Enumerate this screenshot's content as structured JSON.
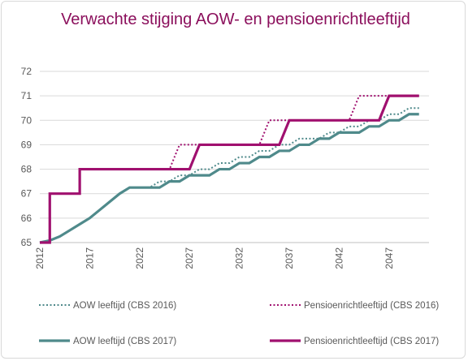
{
  "chart_data": {
    "type": "line",
    "title": "Verwachte stijging  AOW- en pensioenrichtleeftijd",
    "xlabel": "",
    "ylabel": "",
    "xlim": [
      2012,
      2051
    ],
    "ylim": [
      65,
      72
    ],
    "x_ticks": [
      "2012",
      "2017",
      "2022",
      "2027",
      "2032",
      "2037",
      "2042",
      "2047"
    ],
    "y_ticks": [
      "65",
      "66",
      "67",
      "68",
      "69",
      "70",
      "71",
      "72"
    ],
    "grid": true,
    "legend_position": "bottom",
    "series": [
      {
        "name": "AOW leeftijd (CBS 2016)",
        "style": "dotted",
        "color": "#4f8a8b",
        "points": [
          [
            2012,
            65
          ],
          [
            2013,
            65.083
          ],
          [
            2014,
            65.25
          ],
          [
            2015,
            65.5
          ],
          [
            2016,
            65.75
          ],
          [
            2017,
            66
          ],
          [
            2018,
            66.333
          ],
          [
            2019,
            66.667
          ],
          [
            2020,
            67
          ],
          [
            2021,
            67.25
          ],
          [
            2022,
            67.25
          ],
          [
            2023,
            67.25
          ],
          [
            2024,
            67.5
          ],
          [
            2025,
            67.5
          ],
          [
            2026,
            67.75
          ],
          [
            2027,
            67.75
          ],
          [
            2028,
            68
          ],
          [
            2029,
            68
          ],
          [
            2030,
            68.25
          ],
          [
            2031,
            68.25
          ],
          [
            2032,
            68.5
          ],
          [
            2033,
            68.5
          ],
          [
            2034,
            68.75
          ],
          [
            2035,
            68.75
          ],
          [
            2036,
            69
          ],
          [
            2037,
            69
          ],
          [
            2038,
            69.25
          ],
          [
            2039,
            69.25
          ],
          [
            2040,
            69.25
          ],
          [
            2041,
            69.5
          ],
          [
            2042,
            69.5
          ],
          [
            2043,
            69.75
          ],
          [
            2044,
            69.75
          ],
          [
            2045,
            70
          ],
          [
            2046,
            70
          ],
          [
            2047,
            70.25
          ],
          [
            2048,
            70.25
          ],
          [
            2049,
            70.5
          ],
          [
            2050,
            70.5
          ]
        ]
      },
      {
        "name": "Pensioenrichtleeftijd (CBS 2016)",
        "style": "dotted",
        "color": "#a0106f",
        "points": [
          [
            2012,
            65
          ],
          [
            2013,
            65
          ],
          [
            2013,
            67
          ],
          [
            2014,
            67
          ],
          [
            2015,
            67
          ],
          [
            2016,
            67
          ],
          [
            2016,
            68
          ],
          [
            2017,
            68
          ],
          [
            2018,
            68
          ],
          [
            2019,
            68
          ],
          [
            2020,
            68
          ],
          [
            2021,
            68
          ],
          [
            2022,
            68
          ],
          [
            2023,
            68
          ],
          [
            2024,
            68
          ],
          [
            2025,
            68
          ],
          [
            2026,
            69
          ],
          [
            2027,
            69
          ],
          [
            2028,
            69
          ],
          [
            2029,
            69
          ],
          [
            2030,
            69
          ],
          [
            2031,
            69
          ],
          [
            2032,
            69
          ],
          [
            2033,
            69
          ],
          [
            2034,
            69
          ],
          [
            2035,
            70
          ],
          [
            2036,
            70
          ],
          [
            2037,
            70
          ],
          [
            2038,
            70
          ],
          [
            2039,
            70
          ],
          [
            2040,
            70
          ],
          [
            2041,
            70
          ],
          [
            2042,
            70
          ],
          [
            2043,
            70
          ],
          [
            2044,
            71
          ],
          [
            2045,
            71
          ],
          [
            2046,
            71
          ],
          [
            2047,
            71
          ],
          [
            2048,
            71
          ],
          [
            2049,
            71
          ],
          [
            2050,
            71
          ]
        ]
      },
      {
        "name": "AOW leeftijd (CBS 2017)",
        "style": "solid",
        "color": "#4f8a8b",
        "points": [
          [
            2012,
            65
          ],
          [
            2013,
            65.083
          ],
          [
            2014,
            65.25
          ],
          [
            2015,
            65.5
          ],
          [
            2016,
            65.75
          ],
          [
            2017,
            66
          ],
          [
            2018,
            66.333
          ],
          [
            2019,
            66.667
          ],
          [
            2020,
            67
          ],
          [
            2021,
            67.25
          ],
          [
            2022,
            67.25
          ],
          [
            2023,
            67.25
          ],
          [
            2024,
            67.25
          ],
          [
            2025,
            67.5
          ],
          [
            2026,
            67.5
          ],
          [
            2027,
            67.75
          ],
          [
            2028,
            67.75
          ],
          [
            2029,
            67.75
          ],
          [
            2030,
            68
          ],
          [
            2031,
            68
          ],
          [
            2032,
            68.25
          ],
          [
            2033,
            68.25
          ],
          [
            2034,
            68.5
          ],
          [
            2035,
            68.5
          ],
          [
            2036,
            68.75
          ],
          [
            2037,
            68.75
          ],
          [
            2038,
            69
          ],
          [
            2039,
            69
          ],
          [
            2040,
            69.25
          ],
          [
            2041,
            69.25
          ],
          [
            2042,
            69.5
          ],
          [
            2043,
            69.5
          ],
          [
            2044,
            69.5
          ],
          [
            2045,
            69.75
          ],
          [
            2046,
            69.75
          ],
          [
            2047,
            70
          ],
          [
            2048,
            70
          ],
          [
            2049,
            70.25
          ],
          [
            2050,
            70.25
          ]
        ]
      },
      {
        "name": "Pensioenrichtleeftijd (CBS 2017)",
        "style": "solid",
        "color": "#a0106f",
        "points": [
          [
            2012,
            65
          ],
          [
            2013,
            65
          ],
          [
            2013,
            67
          ],
          [
            2014,
            67
          ],
          [
            2015,
            67
          ],
          [
            2016,
            67
          ],
          [
            2016,
            68
          ],
          [
            2017,
            68
          ],
          [
            2018,
            68
          ],
          [
            2019,
            68
          ],
          [
            2020,
            68
          ],
          [
            2021,
            68
          ],
          [
            2022,
            68
          ],
          [
            2023,
            68
          ],
          [
            2024,
            68
          ],
          [
            2025,
            68
          ],
          [
            2026,
            68
          ],
          [
            2027,
            68
          ],
          [
            2028,
            69
          ],
          [
            2029,
            69
          ],
          [
            2030,
            69
          ],
          [
            2031,
            69
          ],
          [
            2032,
            69
          ],
          [
            2033,
            69
          ],
          [
            2034,
            69
          ],
          [
            2035,
            69
          ],
          [
            2036,
            69
          ],
          [
            2037,
            70
          ],
          [
            2038,
            70
          ],
          [
            2039,
            70
          ],
          [
            2040,
            70
          ],
          [
            2041,
            70
          ],
          [
            2042,
            70
          ],
          [
            2043,
            70
          ],
          [
            2044,
            70
          ],
          [
            2045,
            70
          ],
          [
            2046,
            70
          ],
          [
            2047,
            71
          ],
          [
            2048,
            71
          ],
          [
            2049,
            71
          ],
          [
            2050,
            71
          ]
        ]
      }
    ]
  }
}
